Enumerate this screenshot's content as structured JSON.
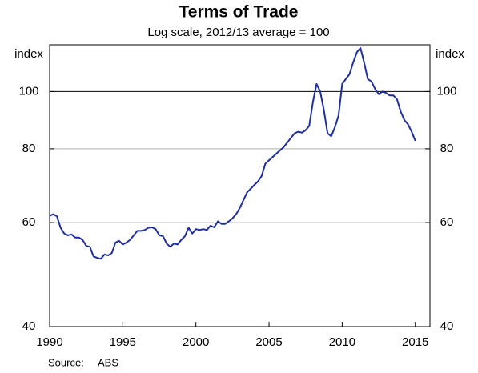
{
  "chart_data": {
    "type": "line",
    "title": "Terms of Trade",
    "subtitle": "Log scale, 2012/13 average = 100",
    "y_label": "index",
    "y2_label": "index",
    "source_label": "Source:",
    "source": "ABS",
    "log_scale": true,
    "grid": true,
    "baseline": 100,
    "xlim": [
      1990,
      2016
    ],
    "xticks": [
      1990,
      1995,
      2000,
      2005,
      2010,
      2015
    ],
    "ylim": [
      40,
      120
    ],
    "yticks": [
      40,
      60,
      80,
      100
    ],
    "y2lim": [
      40,
      120
    ],
    "y2ticks": [
      40,
      60,
      80,
      100
    ],
    "x": [
      1990,
      1990.25,
      1990.5,
      1990.75,
      1991,
      1991.25,
      1991.5,
      1991.75,
      1992,
      1992.25,
      1992.5,
      1992.75,
      1993,
      1993.25,
      1993.5,
      1993.75,
      1994,
      1994.25,
      1994.5,
      1994.75,
      1995,
      1995.25,
      1995.5,
      1995.75,
      1996,
      1996.25,
      1996.5,
      1996.75,
      1997,
      1997.25,
      1997.5,
      1997.75,
      1998,
      1998.25,
      1998.5,
      1998.75,
      1999,
      1999.25,
      1999.5,
      1999.75,
      2000,
      2000.25,
      2000.5,
      2000.75,
      2001,
      2001.25,
      2001.5,
      2001.75,
      2002,
      2002.25,
      2002.5,
      2002.75,
      2003,
      2003.25,
      2003.5,
      2003.75,
      2004,
      2004.25,
      2004.5,
      2004.75,
      2005,
      2005.25,
      2005.5,
      2005.75,
      2006,
      2006.25,
      2006.5,
      2006.75,
      2007,
      2007.25,
      2007.5,
      2007.75,
      2008,
      2008.25,
      2008.5,
      2008.75,
      2009,
      2009.25,
      2009.5,
      2009.75,
      2010,
      2010.25,
      2010.5,
      2010.75,
      2011,
      2011.25,
      2011.5,
      2011.75,
      2012,
      2012.25,
      2012.5,
      2012.75,
      2013,
      2013.25,
      2013.5,
      2013.75,
      2014,
      2014.25,
      2014.5,
      2014.75,
      2015
    ],
    "series": [
      {
        "name": "Terms of Trade",
        "color": "#1f2f9e",
        "values": [
          61.6,
          62,
          61.5,
          58.8,
          57.5,
          57.1,
          57.3,
          56.6,
          56.6,
          56.1,
          54.8,
          54.6,
          52.6,
          52.3,
          52.1,
          53.0,
          52.8,
          53.3,
          55.5,
          55.9,
          55.1,
          55.5,
          56.1,
          57.1,
          58.1,
          58.1,
          58.3,
          58.8,
          58.9,
          58.5,
          57.1,
          56.9,
          55.3,
          54.6,
          55.3,
          55.1,
          56.1,
          56.9,
          58.8,
          57.5,
          58.5,
          58.3,
          58.5,
          58.3,
          59.3,
          58.9,
          60.3,
          59.7,
          59.7,
          60.3,
          61,
          62,
          63.5,
          65.5,
          67.5,
          68.5,
          69.5,
          70.5,
          72,
          75.5,
          76.5,
          77.5,
          78.5,
          79.5,
          80.5,
          82,
          83.5,
          85,
          85.5,
          85.2,
          86,
          87.5,
          96,
          103,
          100,
          93,
          85,
          84,
          87,
          91,
          103,
          105,
          107,
          112,
          116.5,
          118.5,
          112,
          105,
          104,
          101,
          99,
          100,
          99.5,
          98.5,
          98.5,
          97,
          92.5,
          89.5,
          88,
          85.5,
          82.5
        ]
      }
    ]
  }
}
